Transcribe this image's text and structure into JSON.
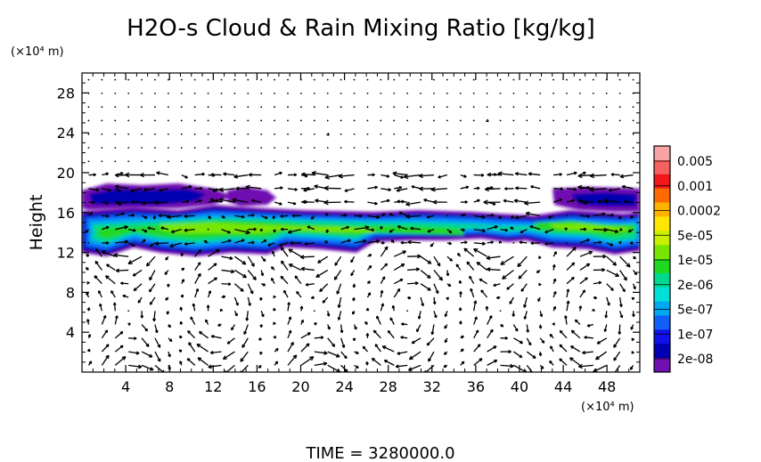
{
  "chart_data": {
    "type": "heatmap",
    "title": "H2O-s Cloud & Rain Mixing Ratio [kg/kg]",
    "ylabel": "Height",
    "y_unit": "(×10⁴ m)",
    "x_unit": "(×10⁴ m)",
    "xlim": [
      0,
      51
    ],
    "ylim": [
      0,
      30
    ],
    "x_ticks": [
      4,
      8,
      12,
      16,
      20,
      24,
      28,
      32,
      36,
      40,
      44,
      48
    ],
    "y_ticks": [
      4,
      8,
      12,
      16,
      20,
      24,
      28
    ],
    "grid": false,
    "legend_position": "right",
    "time_label": "TIME = 3280000.0",
    "colorbar": {
      "labels": [
        "0.005",
        "0.001",
        "0.0002",
        "5e-05",
        "1e-05",
        "2e-06",
        "5e-07",
        "1e-07",
        "2e-08"
      ],
      "colors": [
        "#f8a4a4",
        "#f56060",
        "#f01818",
        "#ff6a00",
        "#ffb300",
        "#ffe600",
        "#c8f000",
        "#78e600",
        "#20d820",
        "#00d890",
        "#00e0d8",
        "#00a8f0",
        "#1060f8",
        "#1010e8",
        "#0000b0",
        "#7010b0"
      ]
    },
    "cloud_layer": {
      "main_band": [
        12,
        16.5
      ],
      "upper_band": [
        16.5,
        19
      ]
    },
    "wind_vectors": "arrow field plotted over the full domain"
  }
}
